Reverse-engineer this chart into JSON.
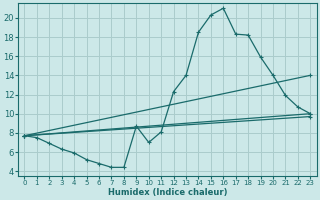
{
  "xlabel": "Humidex (Indice chaleur)",
  "bg_color": "#cce8e8",
  "grid_color": "#aacccc",
  "line_color": "#1a6b6b",
  "xlim": [
    -0.5,
    23.5
  ],
  "ylim": [
    3.5,
    21.5
  ],
  "yticks": [
    4,
    6,
    8,
    10,
    12,
    14,
    16,
    18,
    20
  ],
  "xticks": [
    0,
    1,
    2,
    3,
    4,
    5,
    6,
    7,
    8,
    9,
    10,
    11,
    12,
    13,
    14,
    15,
    16,
    17,
    18,
    19,
    20,
    21,
    22,
    23
  ],
  "series1_x": [
    0,
    1,
    2,
    3,
    4,
    5,
    6,
    7,
    8,
    9,
    10,
    11,
    12,
    13,
    14,
    15,
    16,
    17,
    18,
    19,
    20,
    21,
    22,
    23
  ],
  "series1_y": [
    7.7,
    7.5,
    6.9,
    6.3,
    5.9,
    5.2,
    4.8,
    4.4,
    4.4,
    8.7,
    7.0,
    8.1,
    12.3,
    14.0,
    18.5,
    20.3,
    21.0,
    18.3,
    18.2,
    15.9,
    14.0,
    11.9,
    10.7,
    10.0
  ],
  "series2_x": [
    0,
    23
  ],
  "series2_y": [
    7.7,
    14.0
  ],
  "series3_x": [
    0,
    23
  ],
  "series3_y": [
    7.7,
    10.0
  ],
  "series4_x": [
    0,
    23
  ],
  "series4_y": [
    7.7,
    9.7
  ]
}
